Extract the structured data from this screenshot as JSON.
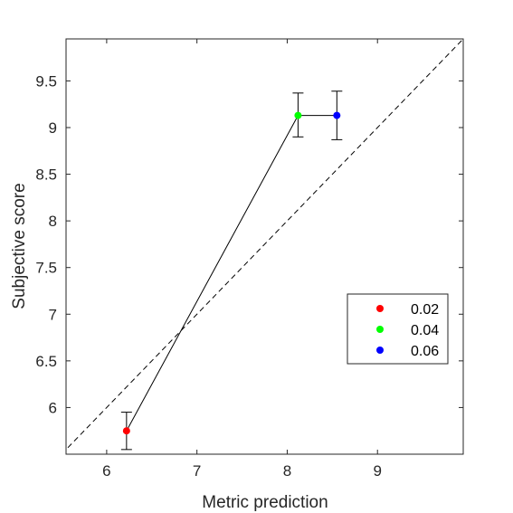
{
  "chart_data": {
    "type": "scatter",
    "xlabel": "Metric prediction",
    "ylabel": "Subjective score",
    "xlim": [
      5.55,
      9.95
    ],
    "ylim": [
      5.5,
      9.95
    ],
    "xticks": [
      6,
      7,
      8,
      9
    ],
    "yticks": [
      6,
      6.5,
      7,
      7.5,
      8,
      8.5,
      9,
      9.5
    ],
    "xtick_labels": [
      "6",
      "7",
      "8",
      "9"
    ],
    "ytick_labels": [
      "6",
      "6.5",
      "7",
      "7.5",
      "8",
      "8.5",
      "9",
      "9.5"
    ],
    "grid": false,
    "legend_position": "lower-right",
    "reference_line": {
      "style": "dashed",
      "color": "#000000",
      "description": "y = x"
    },
    "connecting_line_color": "#000000",
    "points": [
      {
        "label": "0.02",
        "x": 6.22,
        "y": 5.75,
        "err_low": 5.55,
        "err_high": 5.95,
        "color": "#ff0000"
      },
      {
        "label": "0.04",
        "x": 8.12,
        "y": 9.13,
        "err_low": 8.9,
        "err_high": 9.37,
        "color": "#00ff00"
      },
      {
        "label": "0.06",
        "x": 8.55,
        "y": 9.13,
        "err_low": 8.87,
        "err_high": 9.39,
        "color": "#0000ff"
      }
    ]
  }
}
